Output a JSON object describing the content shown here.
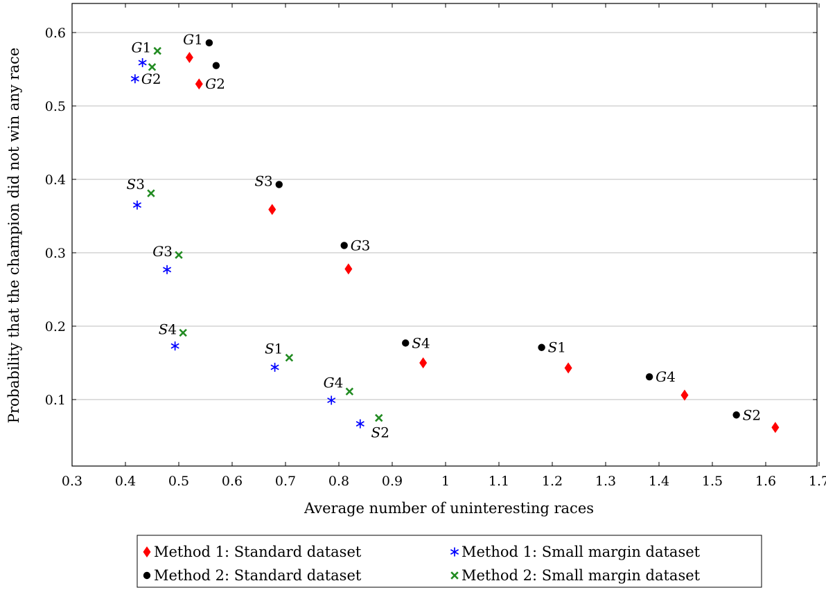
{
  "chart_data": {
    "type": "scatter",
    "title": "",
    "xlabel": "Average number of uninteresting races",
    "ylabel": "Probability that the champion did not win any race",
    "xlim": [
      0.3,
      1.75
    ],
    "ylim": [
      0.0,
      0.64
    ],
    "xticks": [
      "0.3",
      "0.4",
      "0.5",
      "0.6",
      "0.7",
      "0.8",
      "0.9",
      "1",
      "1.1",
      "1.2",
      "1.3",
      "1.4",
      "1.5",
      "1.6",
      "1.7"
    ],
    "yticks": [
      "0.1",
      "0.2",
      "0.3",
      "0.4",
      "0.5",
      "0.6"
    ],
    "grid": "horizontal",
    "legend_position": "bottom",
    "series": [
      {
        "name": "Method 1: Standard dataset",
        "marker": "diamond",
        "color": "#ff0000",
        "points": [
          {
            "x": 0.52,
            "y": 0.566,
            "label": ""
          },
          {
            "x": 0.538,
            "y": 0.53,
            "label": "G2"
          },
          {
            "x": 0.675,
            "y": 0.359,
            "label": ""
          },
          {
            "x": 0.818,
            "y": 0.278,
            "label": ""
          },
          {
            "x": 0.958,
            "y": 0.15,
            "label": ""
          },
          {
            "x": 1.23,
            "y": 0.143,
            "label": ""
          },
          {
            "x": 1.448,
            "y": 0.106,
            "label": ""
          },
          {
            "x": 1.618,
            "y": 0.062,
            "label": ""
          }
        ]
      },
      {
        "name": "Method 1: Small margin dataset",
        "marker": "asterisk",
        "color": "#0000ff",
        "points": [
          {
            "x": 0.432,
            "y": 0.559,
            "label": ""
          },
          {
            "x": 0.418,
            "y": 0.537,
            "label": "G2"
          },
          {
            "x": 0.422,
            "y": 0.365,
            "label": ""
          },
          {
            "x": 0.478,
            "y": 0.277,
            "label": ""
          },
          {
            "x": 0.493,
            "y": 0.173,
            "label": ""
          },
          {
            "x": 0.68,
            "y": 0.144,
            "label": ""
          },
          {
            "x": 0.786,
            "y": 0.099,
            "label": ""
          },
          {
            "x": 0.84,
            "y": 0.067,
            "label": ""
          }
        ]
      },
      {
        "name": "Method 2: Standard dataset",
        "marker": "circle",
        "color": "#000000",
        "points": [
          {
            "x": 0.557,
            "y": 0.586,
            "label": "G1"
          },
          {
            "x": 0.57,
            "y": 0.555,
            "label": ""
          },
          {
            "x": 0.688,
            "y": 0.393,
            "label": "S3"
          },
          {
            "x": 0.81,
            "y": 0.31,
            "label": "G3"
          },
          {
            "x": 0.925,
            "y": 0.177,
            "label": "S4"
          },
          {
            "x": 1.18,
            "y": 0.171,
            "label": "S1"
          },
          {
            "x": 1.382,
            "y": 0.131,
            "label": "G4"
          },
          {
            "x": 1.545,
            "y": 0.079,
            "label": "S2"
          }
        ]
      },
      {
        "name": "Method 2: Small margin dataset",
        "marker": "cross",
        "color": "#228b22",
        "points": [
          {
            "x": 0.46,
            "y": 0.575,
            "label": "G1"
          },
          {
            "x": 0.45,
            "y": 0.553,
            "label": ""
          },
          {
            "x": 0.448,
            "y": 0.381,
            "label": "S3"
          },
          {
            "x": 0.5,
            "y": 0.297,
            "label": "G3"
          },
          {
            "x": 0.508,
            "y": 0.191,
            "label": "S4"
          },
          {
            "x": 0.707,
            "y": 0.157,
            "label": "S1"
          },
          {
            "x": 0.82,
            "y": 0.111,
            "label": "G4"
          },
          {
            "x": 0.875,
            "y": 0.075,
            "label": "S2"
          }
        ]
      }
    ]
  }
}
